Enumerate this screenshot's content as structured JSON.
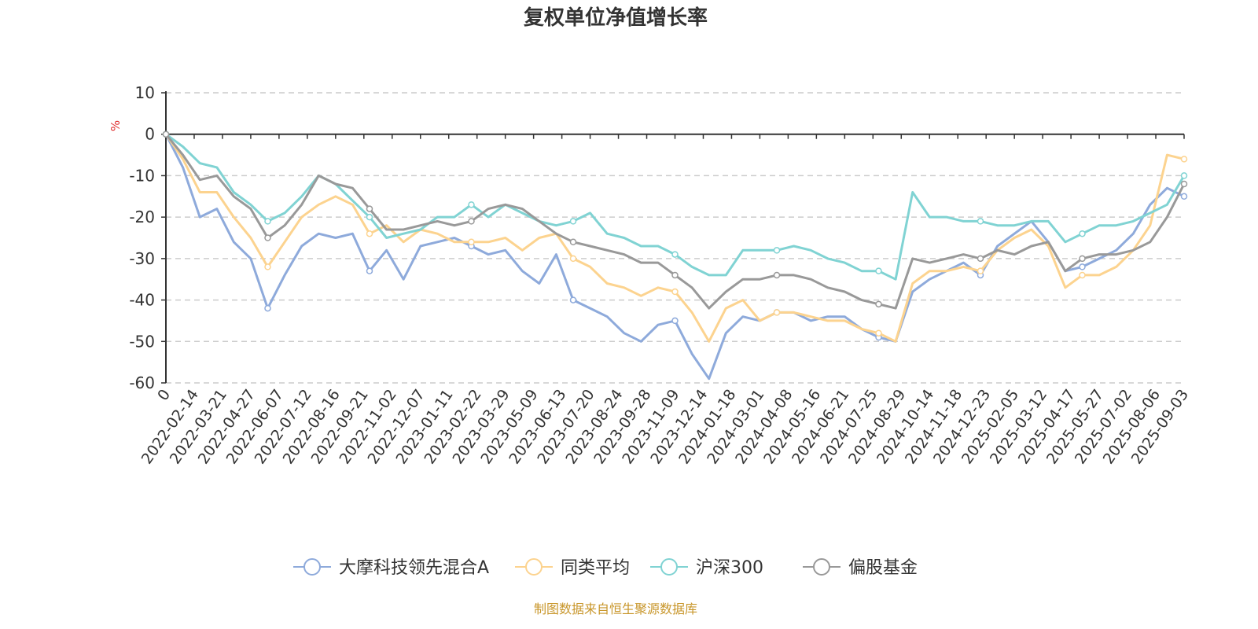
{
  "chart_data": {
    "type": "line",
    "title": "复权单位净值增长率",
    "ylabel": "%",
    "ylim": [
      -60,
      10
    ],
    "yticks": [
      10,
      0,
      -10,
      -20,
      -30,
      -40,
      -50,
      -60
    ],
    "x_tick_labels": [
      "0",
      "2022-02-14",
      "2022-03-21",
      "2022-04-27",
      "2022-06-07",
      "2022-07-12",
      "2022-08-16",
      "2022-09-21",
      "2022-11-02",
      "2022-12-07",
      "2023-01-11",
      "2023-02-22",
      "2023-03-29",
      "2023-05-09",
      "2023-06-13",
      "2023-07-20",
      "2023-08-24",
      "2023-09-28",
      "2023-11-09",
      "2023-12-14",
      "2024-01-18",
      "2024-03-01",
      "2024-04-08",
      "2024-05-16",
      "2024-06-21",
      "2024-07-25",
      "2024-08-29",
      "2024-10-14",
      "2024-11-18",
      "2024-12-23",
      "2025-02-05",
      "2025-03-12",
      "2025-04-17",
      "2025-05-27",
      "2025-07-02",
      "2025-08-06",
      "2025-09-03"
    ],
    "grid": "horizontal dashed",
    "legend_position": "bottom-center",
    "series": [
      {
        "name": "大摩科技领先混合A",
        "color": "#8eaadb",
        "values": [
          0,
          -8,
          -20,
          -18,
          -26,
          -30,
          -42,
          -34,
          -27,
          -24,
          -25,
          -24,
          -33,
          -28,
          -35,
          -27,
          -26,
          -25,
          -27,
          -29,
          -28,
          -33,
          -36,
          -29,
          -40,
          -42,
          -44,
          -48,
          -50,
          -46,
          -45,
          -53,
          -59,
          -48,
          -44,
          -45,
          -43,
          -43,
          -45,
          -44,
          -44,
          -47,
          -49,
          -50,
          -38,
          -35,
          -33,
          -31,
          -34,
          -27,
          -24,
          -21,
          -26,
          -33,
          -32,
          -30,
          -28,
          -24,
          -17,
          -13,
          -15
        ]
      },
      {
        "name": "同类平均",
        "color": "#fcd38f",
        "values": [
          0,
          -6,
          -14,
          -14,
          -20,
          -25,
          -32,
          -26,
          -20,
          -17,
          -15,
          -17,
          -24,
          -22,
          -26,
          -23,
          -24,
          -26,
          -26,
          -26,
          -25,
          -28,
          -25,
          -24,
          -30,
          -32,
          -36,
          -37,
          -39,
          -37,
          -38,
          -43,
          -50,
          -42,
          -40,
          -45,
          -43,
          -43,
          -44,
          -45,
          -45,
          -47,
          -48,
          -50,
          -36,
          -33,
          -33,
          -32,
          -33,
          -28,
          -25,
          -23,
          -27,
          -37,
          -34,
          -34,
          -32,
          -28,
          -22,
          -5,
          -6
        ]
      },
      {
        "name": "沪深300",
        "color": "#80d3d3",
        "values": [
          0,
          -3,
          -7,
          -8,
          -14,
          -17,
          -21,
          -19,
          -15,
          -10,
          -12,
          -16,
          -20,
          -25,
          -24,
          -23,
          -20,
          -20,
          -17,
          -20,
          -17,
          -19,
          -21,
          -22,
          -21,
          -19,
          -24,
          -25,
          -27,
          -27,
          -29,
          -32,
          -34,
          -34,
          -28,
          -28,
          -28,
          -27,
          -28,
          -30,
          -31,
          -33,
          -33,
          -35,
          -14,
          -20,
          -20,
          -21,
          -21,
          -22,
          -22,
          -21,
          -21,
          -26,
          -24,
          -22,
          -22,
          -21,
          -19,
          -17,
          -10
        ]
      },
      {
        "name": "偏股基金",
        "color": "#999999",
        "values": [
          0,
          -5,
          -11,
          -10,
          -15,
          -18,
          -25,
          -22,
          -17,
          -10,
          -12,
          -13,
          -18,
          -23,
          -23,
          -22,
          -21,
          -22,
          -21,
          -18,
          -17,
          -18,
          -21,
          -24,
          -26,
          -27,
          -28,
          -29,
          -31,
          -31,
          -34,
          -37,
          -42,
          -38,
          -35,
          -35,
          -34,
          -34,
          -35,
          -37,
          -38,
          -40,
          -41,
          -42,
          -30,
          -31,
          -30,
          -29,
          -30,
          -28,
          -29,
          -27,
          -26,
          -33,
          -30,
          -29,
          -29,
          -28,
          -26,
          -20,
          -12
        ]
      }
    ],
    "source_note": "制图数据来自恒生聚源数据库"
  }
}
